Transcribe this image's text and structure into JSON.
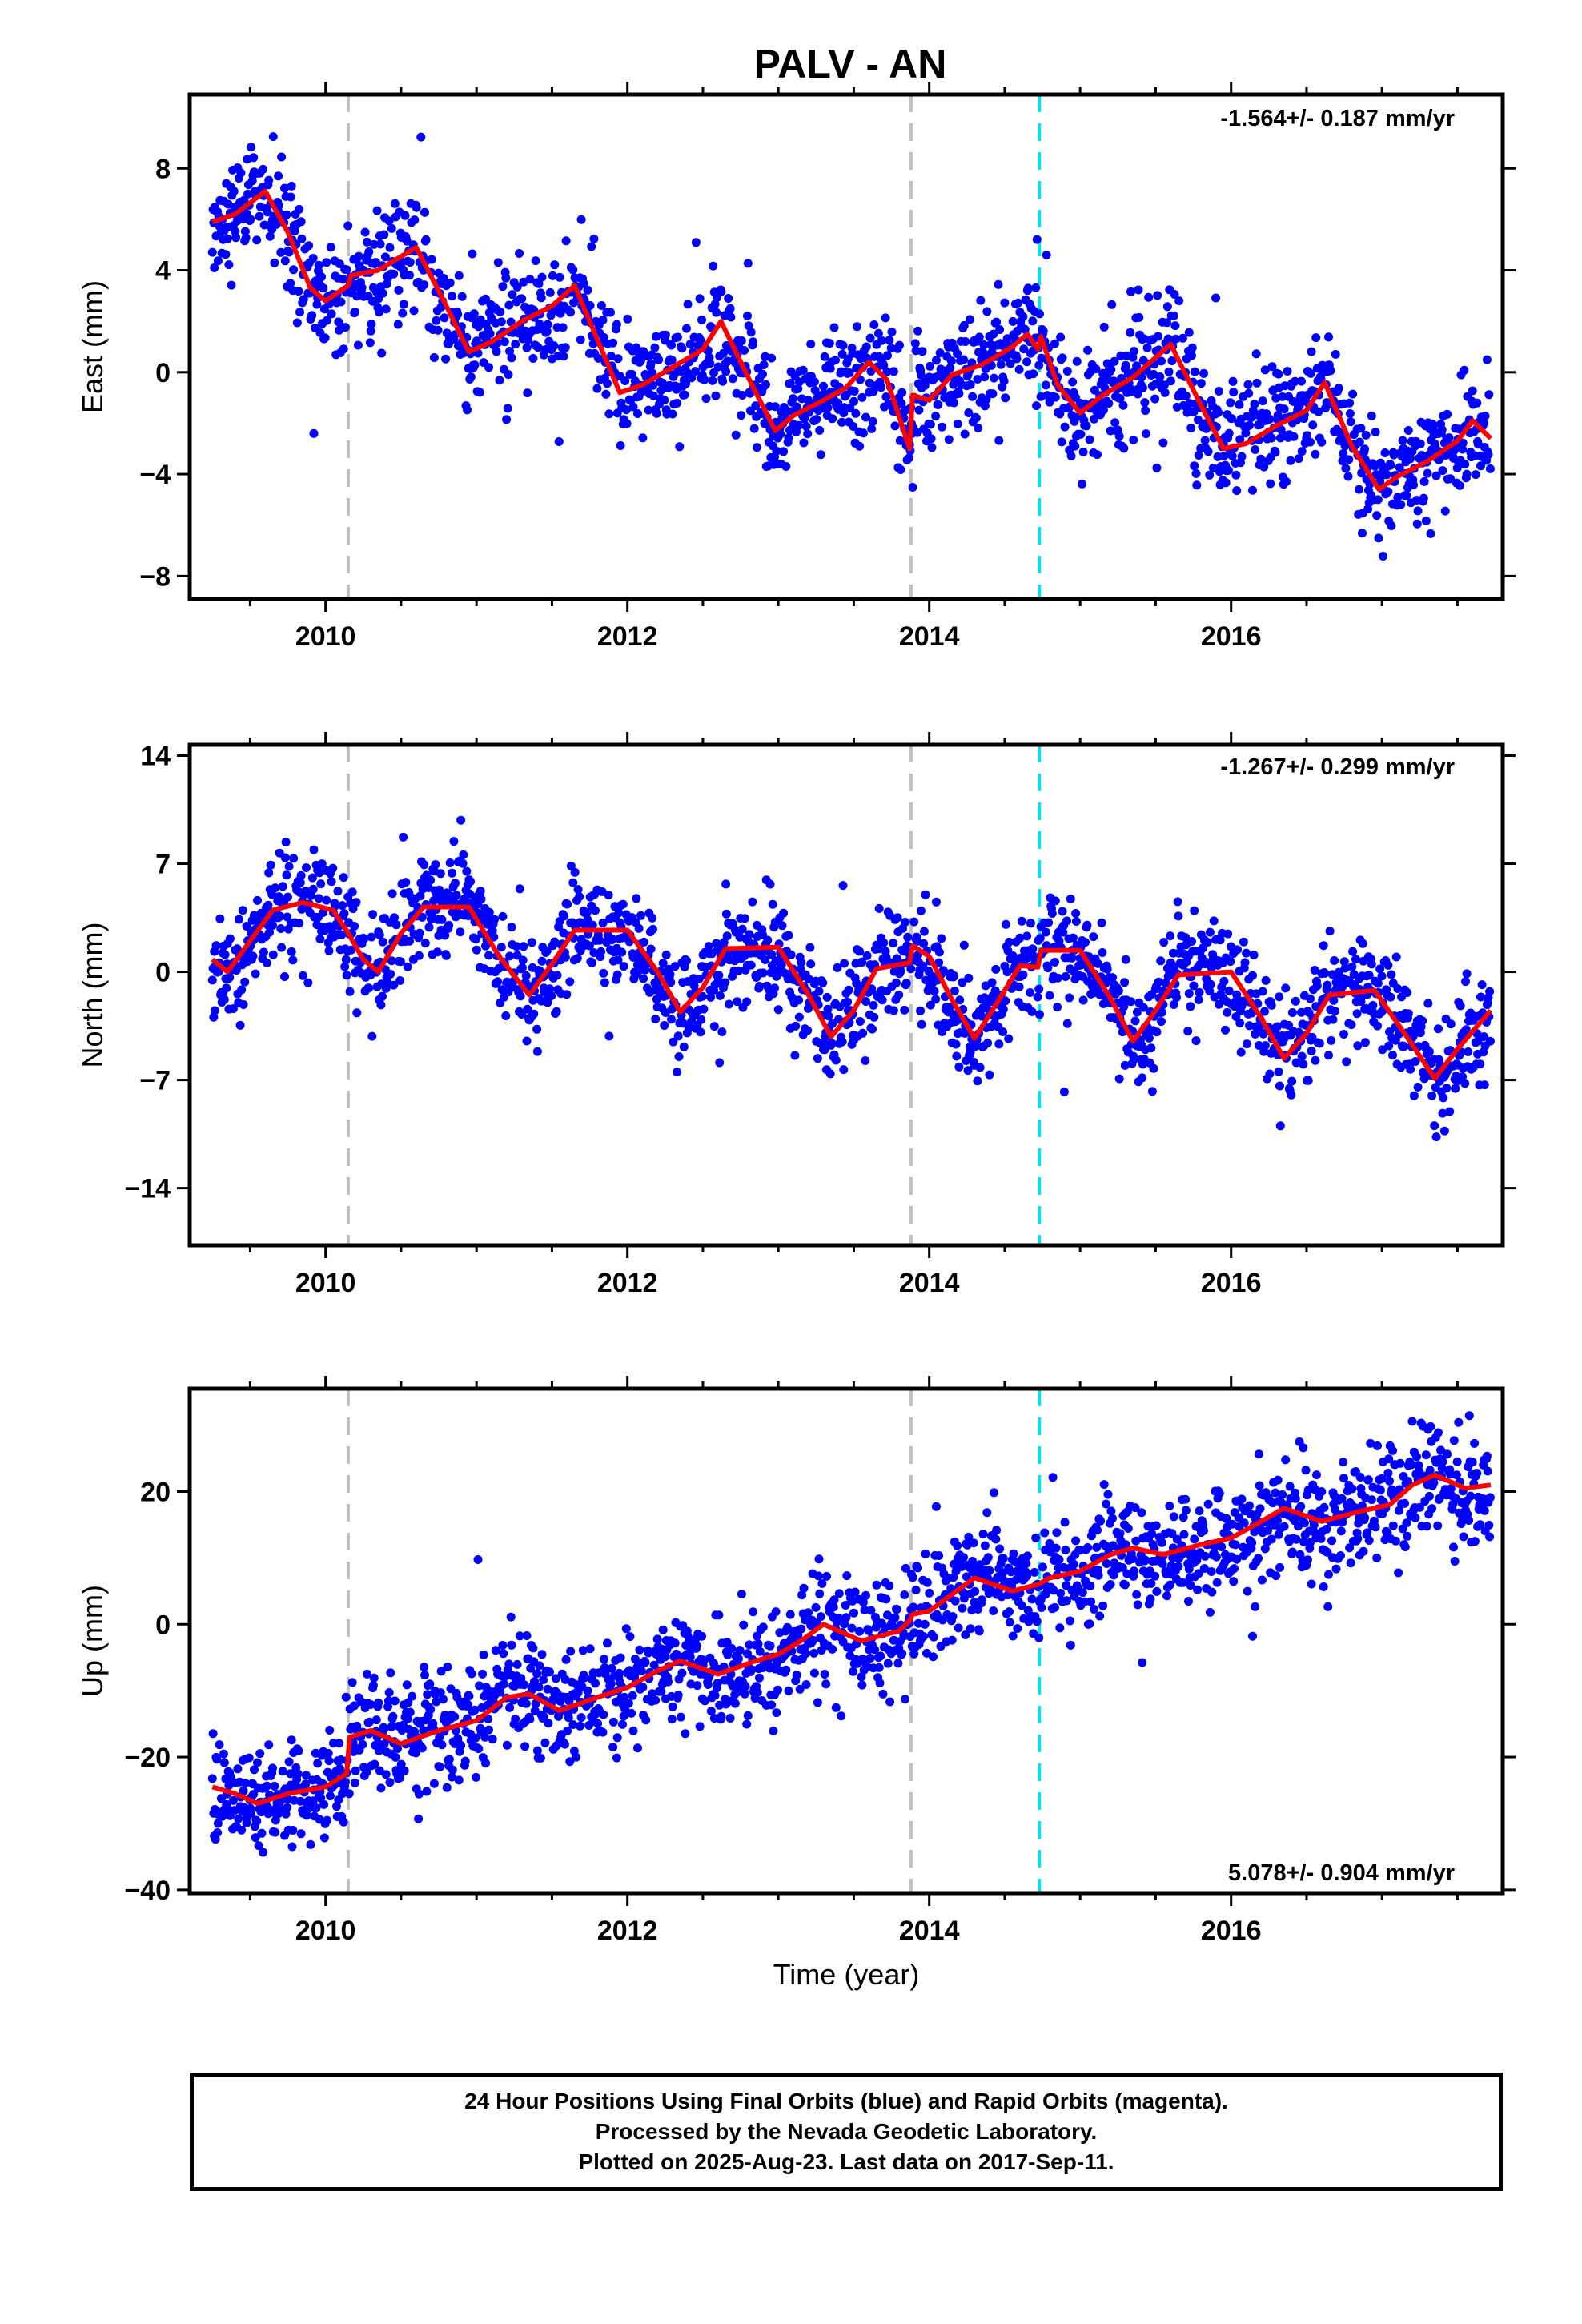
{
  "title": "PALV - AN",
  "xlabel": "Time (year)",
  "footer": [
    "24 Hour Positions Using Final Orbits (blue) and Rapid Orbits (magenta).",
    "Processed by the Nevada Geodetic Laboratory.",
    "Plotted on 2025-Aug-23. Last data on 2017-Sep-11."
  ],
  "colors": {
    "points": "#0000ff",
    "model": "#ff0000",
    "equipment_change": "#c0c0c0",
    "earthquake": "#00e5ee"
  },
  "chart_data": [
    {
      "type": "scatter",
      "component": "East",
      "ylabel": "East (mm)",
      "rate_label": "-1.564+/- 0.187 mm/yr",
      "xlim": [
        2009.1,
        2017.8
      ],
      "ylim": [
        -8.9,
        10.9
      ],
      "yticks": [
        -8,
        -4,
        0,
        4,
        8
      ],
      "xticks": [
        2010,
        2012,
        2014,
        2016
      ],
      "vlines_gray": [
        2010.15,
        2013.88
      ],
      "vlines_cyan": [
        2014.73
      ],
      "model": [
        [
          2009.25,
          5.9
        ],
        [
          2009.4,
          6.2
        ],
        [
          2009.6,
          7.1
        ],
        [
          2009.75,
          5.5
        ],
        [
          2009.9,
          3.3
        ],
        [
          2010.0,
          2.8
        ],
        [
          2010.15,
          3.4
        ],
        [
          2010.17,
          3.8
        ],
        [
          2010.35,
          4.0
        ],
        [
          2010.6,
          4.9
        ],
        [
          2010.8,
          2.6
        ],
        [
          2010.95,
          0.8
        ],
        [
          2011.1,
          1.2
        ],
        [
          2011.3,
          2.0
        ],
        [
          2011.5,
          2.6
        ],
        [
          2011.65,
          3.4
        ],
        [
          2011.8,
          1.3
        ],
        [
          2011.95,
          -0.8
        ],
        [
          2012.1,
          -0.5
        ],
        [
          2012.3,
          0.2
        ],
        [
          2012.5,
          0.9
        ],
        [
          2012.62,
          2.0
        ],
        [
          2012.8,
          -0.2
        ],
        [
          2012.98,
          -2.3
        ],
        [
          2013.1,
          -1.7
        ],
        [
          2013.3,
          -1.1
        ],
        [
          2013.45,
          -0.6
        ],
        [
          2013.6,
          0.4
        ],
        [
          2013.72,
          -0.3
        ],
        [
          2013.87,
          -3.0
        ],
        [
          2013.89,
          -0.9
        ],
        [
          2014.0,
          -1.1
        ],
        [
          2014.15,
          -0.1
        ],
        [
          2014.35,
          0.3
        ],
        [
          2014.55,
          1.0
        ],
        [
          2014.65,
          1.5
        ],
        [
          2014.72,
          0.9
        ],
        [
          2014.74,
          1.4
        ],
        [
          2014.85,
          -0.5
        ],
        [
          2015.0,
          -1.6
        ],
        [
          2015.15,
          -0.9
        ],
        [
          2015.35,
          -0.2
        ],
        [
          2015.6,
          1.1
        ],
        [
          2015.8,
          -1.3
        ],
        [
          2015.95,
          -3.0
        ],
        [
          2016.1,
          -2.8
        ],
        [
          2016.3,
          -2.1
        ],
        [
          2016.5,
          -1.5
        ],
        [
          2016.62,
          -0.4
        ],
        [
          2016.8,
          -2.9
        ],
        [
          2016.98,
          -4.6
        ],
        [
          2017.1,
          -4.1
        ],
        [
          2017.3,
          -3.5
        ],
        [
          2017.5,
          -2.7
        ],
        [
          2017.6,
          -1.9
        ],
        [
          2017.72,
          -2.6
        ]
      ]
    },
    {
      "type": "scatter",
      "component": "North",
      "ylabel": "North (mm)",
      "rate_label": "-1.267+/- 0.299 mm/yr",
      "xlim": [
        2009.1,
        2017.8
      ],
      "ylim": [
        -17.7,
        14.7
      ],
      "yticks": [
        -14,
        -7,
        0,
        7,
        14
      ],
      "xticks": [
        2010,
        2012,
        2014,
        2016
      ],
      "vlines_gray": [
        2010.15,
        2013.88
      ],
      "vlines_cyan": [
        2014.73
      ],
      "model": [
        [
          2009.25,
          0.8
        ],
        [
          2009.35,
          0.0
        ],
        [
          2009.5,
          2.0
        ],
        [
          2009.65,
          4.0
        ],
        [
          2009.85,
          4.5
        ],
        [
          2010.05,
          4.0
        ],
        [
          2010.15,
          2.5
        ],
        [
          2010.25,
          0.8
        ],
        [
          2010.35,
          0.0
        ],
        [
          2010.5,
          2.5
        ],
        [
          2010.65,
          4.2
        ],
        [
          2010.95,
          4.2
        ],
        [
          2011.15,
          1.0
        ],
        [
          2011.35,
          -1.5
        ],
        [
          2011.5,
          0.5
        ],
        [
          2011.65,
          2.7
        ],
        [
          2012.0,
          2.7
        ],
        [
          2012.2,
          0.0
        ],
        [
          2012.35,
          -2.6
        ],
        [
          2012.5,
          -1.0
        ],
        [
          2012.65,
          1.5
        ],
        [
          2013.0,
          1.6
        ],
        [
          2013.2,
          -1.5
        ],
        [
          2013.35,
          -4.2
        ],
        [
          2013.5,
          -2.5
        ],
        [
          2013.65,
          0.2
        ],
        [
          2013.87,
          0.6
        ],
        [
          2013.89,
          1.7
        ],
        [
          2014.0,
          1.0
        ],
        [
          2014.15,
          -1.8
        ],
        [
          2014.3,
          -4.3
        ],
        [
          2014.45,
          -2.0
        ],
        [
          2014.6,
          0.4
        ],
        [
          2014.72,
          0.3
        ],
        [
          2014.74,
          1.4
        ],
        [
          2015.0,
          1.4
        ],
        [
          2015.2,
          -1.7
        ],
        [
          2015.35,
          -4.5
        ],
        [
          2015.5,
          -2.5
        ],
        [
          2015.65,
          -0.2
        ],
        [
          2016.0,
          0.0
        ],
        [
          2016.2,
          -3.0
        ],
        [
          2016.35,
          -5.6
        ],
        [
          2016.5,
          -4.0
        ],
        [
          2016.65,
          -1.5
        ],
        [
          2016.95,
          -1.2
        ],
        [
          2017.15,
          -4.0
        ],
        [
          2017.35,
          -6.9
        ],
        [
          2017.5,
          -5.0
        ],
        [
          2017.72,
          -2.5
        ]
      ]
    },
    {
      "type": "scatter",
      "component": "Up",
      "ylabel": "Up (mm)",
      "rate_label": "5.078+/- 0.904 mm/yr",
      "xlim": [
        2009.1,
        2017.8
      ],
      "ylim": [
        -40.5,
        35.5
      ],
      "yticks": [
        -40,
        -20,
        0,
        20
      ],
      "xticks": [
        2010,
        2012,
        2014,
        2016
      ],
      "vlines_gray": [
        2010.15,
        2013.88
      ],
      "vlines_cyan": [
        2014.73
      ],
      "model": [
        [
          2009.25,
          -24.5
        ],
        [
          2009.4,
          -25.5
        ],
        [
          2009.55,
          -27.0
        ],
        [
          2009.75,
          -25.5
        ],
        [
          2010.0,
          -24.5
        ],
        [
          2010.14,
          -22.5
        ],
        [
          2010.16,
          -17.0
        ],
        [
          2010.3,
          -16.0
        ],
        [
          2010.5,
          -18.0
        ],
        [
          2010.75,
          -16.0
        ],
        [
          2011.0,
          -14.5
        ],
        [
          2011.2,
          -11.0
        ],
        [
          2011.35,
          -10.5
        ],
        [
          2011.55,
          -13.0
        ],
        [
          2011.8,
          -11.0
        ],
        [
          2012.0,
          -9.5
        ],
        [
          2012.2,
          -7.0
        ],
        [
          2012.35,
          -5.5
        ],
        [
          2012.6,
          -7.5
        ],
        [
          2012.85,
          -5.5
        ],
        [
          2013.0,
          -4.5
        ],
        [
          2013.15,
          -2.5
        ],
        [
          2013.3,
          0.0
        ],
        [
          2013.55,
          -2.5
        ],
        [
          2013.8,
          -1.0
        ],
        [
          2013.87,
          0.5
        ],
        [
          2013.89,
          1.5
        ],
        [
          2014.0,
          2.0
        ],
        [
          2014.15,
          4.5
        ],
        [
          2014.3,
          7.0
        ],
        [
          2014.55,
          5.0
        ],
        [
          2014.72,
          6.0
        ],
        [
          2014.8,
          7.0
        ],
        [
          2015.0,
          8.0
        ],
        [
          2015.2,
          10.5
        ],
        [
          2015.35,
          11.5
        ],
        [
          2015.55,
          10.5
        ],
        [
          2015.8,
          12.0
        ],
        [
          2016.0,
          13.0
        ],
        [
          2016.2,
          15.5
        ],
        [
          2016.35,
          17.5
        ],
        [
          2016.6,
          15.5
        ],
        [
          2016.85,
          17.0
        ],
        [
          2017.05,
          18.0
        ],
        [
          2017.2,
          21.0
        ],
        [
          2017.35,
          22.5
        ],
        [
          2017.55,
          20.5
        ],
        [
          2017.72,
          21.0
        ]
      ]
    }
  ]
}
